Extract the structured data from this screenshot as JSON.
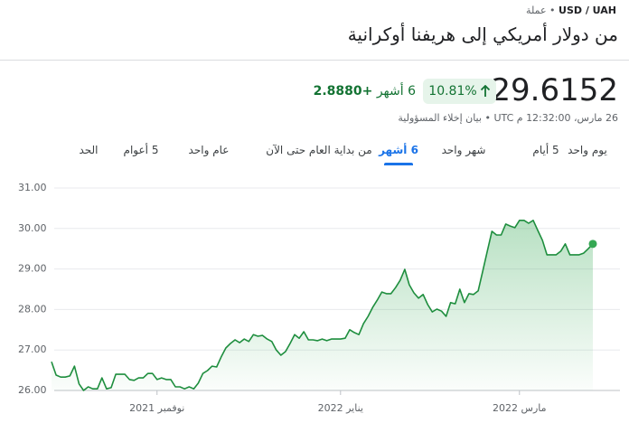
{
  "header": {
    "pair": "USD / UAH",
    "separator": "•",
    "category": "عملة",
    "title": "من دولار أمريكي إلى هريفنا أوكرانية"
  },
  "quote": {
    "price": 29.6152,
    "percent_change": "10.81%",
    "change": "+2.8880",
    "period": "6 أشهر",
    "timestamp": "26 مارس، 12:32:00 م UTC",
    "separator": "•",
    "disclaimer": "بيان إخلاء المسؤولية"
  },
  "tabs": [
    {
      "label": "يوم واحد",
      "selected": false
    },
    {
      "label": "5 أيام",
      "selected": false
    },
    {
      "label": "شهر واحد",
      "selected": false
    },
    {
      "label": "6 أشهر",
      "selected": true
    },
    {
      "label": "من بداية العام حتى الآن",
      "selected": false
    },
    {
      "label": "عام واحد",
      "selected": false
    },
    {
      "label": "5 أعوام",
      "selected": false
    },
    {
      "label": "الحد",
      "selected": false
    }
  ],
  "chart_data": {
    "type": "line",
    "color": "#1e8e3e",
    "grid": true,
    "values": [
      26.71,
      26.38,
      26.33,
      26.33,
      26.36,
      26.6,
      26.16,
      26.0,
      26.09,
      26.04,
      26.04,
      26.31,
      26.04,
      26.07,
      26.4,
      26.4,
      26.4,
      26.27,
      26.25,
      26.31,
      26.31,
      26.42,
      26.42,
      26.27,
      26.31,
      26.27,
      26.27,
      26.09,
      26.09,
      26.04,
      26.09,
      26.04,
      26.18,
      26.42,
      26.49,
      26.6,
      26.58,
      26.83,
      27.05,
      27.16,
      27.25,
      27.18,
      27.27,
      27.21,
      27.38,
      27.34,
      27.36,
      27.27,
      27.21,
      27.0,
      26.87,
      26.96,
      27.16,
      27.38,
      27.29,
      27.45,
      27.25,
      27.25,
      27.23,
      27.27,
      27.23,
      27.27,
      27.27,
      27.27,
      27.29,
      27.5,
      27.43,
      27.38,
      27.65,
      27.83,
      28.05,
      28.23,
      28.43,
      28.39,
      28.39,
      28.54,
      28.72,
      28.99,
      28.61,
      28.41,
      28.28,
      28.37,
      28.12,
      27.94,
      28.01,
      27.96,
      27.83,
      28.17,
      28.14,
      28.5,
      28.17,
      28.39,
      28.37,
      28.46,
      28.95,
      29.44,
      29.93,
      29.84,
      29.84,
      30.11,
      30.06,
      30.02,
      30.2,
      30.2,
      30.13,
      30.2,
      29.95,
      29.71,
      29.35,
      29.35,
      29.35,
      29.44,
      29.62,
      29.35,
      29.35,
      29.35,
      29.39,
      29.5,
      29.62
    ],
    "xlim": [
      0,
      118
    ],
    "xticks": [
      {
        "value": 23,
        "label": "نوفمبر 2021"
      },
      {
        "value": 63,
        "label": "يناير 2022"
      },
      {
        "value": 102,
        "label": "مارس 2022"
      }
    ],
    "ylim": [
      26,
      31
    ],
    "yticks": [
      {
        "value": 26,
        "label": "26.00"
      },
      {
        "value": 27,
        "label": "27.00"
      },
      {
        "value": 28,
        "label": "28.00"
      },
      {
        "value": 29,
        "label": "29.00"
      },
      {
        "value": 30,
        "label": "30.00"
      },
      {
        "value": 31,
        "label": "31.00"
      }
    ]
  }
}
